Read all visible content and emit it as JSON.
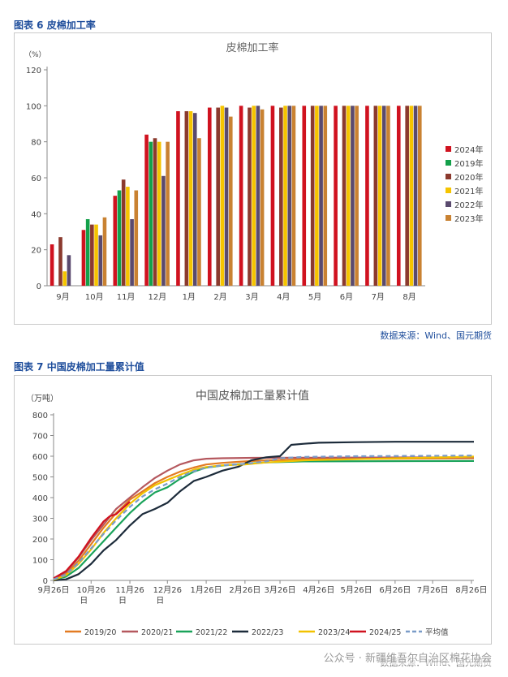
{
  "fig6": {
    "caption": "图表 6 皮棉加工率",
    "source": "数据来源：Wind、国元期货"
  },
  "fig7": {
    "caption": "图表 7 中国皮棉加工量累计值",
    "source": "数据来源：Wind、国元期货"
  },
  "watermark": "公众号 · 新疆维吾尔自治区棉花协会",
  "colors": {
    "2024年": "#d0121f",
    "2019年": "#14a04a",
    "2020年": "#8b3a2e",
    "2021年": "#f5c400",
    "2022年": "#5a4a6e",
    "2023年": "#c98232",
    "2019/20": "#e37b22",
    "2020/21": "#b5585e",
    "2021/22": "#1aa35a",
    "2022/23": "#1c2b3a",
    "2023/24": "#f2c200",
    "2024/25": "#d0121f",
    "平均值": "#7a9cc8"
  },
  "chart_data": [
    {
      "type": "bar",
      "title": "皮棉加工率",
      "ylabel": "（%）",
      "ylim": [
        0,
        120
      ],
      "yticks": [
        0,
        20,
        40,
        60,
        80,
        100,
        120
      ],
      "categories": [
        "9月",
        "10月",
        "11月",
        "12月",
        "1月",
        "2月",
        "3月",
        "4月",
        "5月",
        "6月",
        "7月",
        "8月"
      ],
      "grid": false,
      "legend_position": "right",
      "series": [
        {
          "name": "2024年",
          "values": [
            23,
            31,
            50,
            84,
            97,
            99,
            100,
            100,
            100,
            100,
            100,
            100
          ]
        },
        {
          "name": "2019年",
          "values": [
            null,
            37,
            53,
            80,
            null,
            null,
            null,
            null,
            null,
            null,
            null,
            null
          ]
        },
        {
          "name": "2020年",
          "values": [
            27,
            34,
            59,
            82,
            97,
            99,
            99,
            99,
            100,
            100,
            100,
            100
          ]
        },
        {
          "name": "2021年",
          "values": [
            8,
            34,
            55,
            80,
            97,
            100,
            100,
            100,
            100,
            100,
            100,
            100
          ]
        },
        {
          "name": "2022年",
          "values": [
            17,
            28,
            37,
            61,
            96,
            99,
            100,
            100,
            100,
            100,
            100,
            100
          ]
        },
        {
          "name": "2023年",
          "values": [
            null,
            38,
            53,
            80,
            82,
            94,
            98,
            100,
            100,
            100,
            100,
            100
          ]
        }
      ]
    },
    {
      "type": "line",
      "title": "中国皮棉加工量累计值",
      "ylabel": "（万吨）",
      "ylim": [
        0,
        800
      ],
      "yticks": [
        0,
        100,
        200,
        300,
        400,
        500,
        600,
        700,
        800
      ],
      "xlim": [
        0,
        336
      ],
      "xticks": [
        {
          "x": 0,
          "lines": [
            "9月26日"
          ]
        },
        {
          "x": 30,
          "lines": [
            "10月26",
            "日"
          ]
        },
        {
          "x": 61,
          "lines": [
            "11月26",
            "日"
          ]
        },
        {
          "x": 91,
          "lines": [
            "12月26",
            "日"
          ]
        },
        {
          "x": 122,
          "lines": [
            "1月26日"
          ]
        },
        {
          "x": 153,
          "lines": [
            "2月26日"
          ]
        },
        {
          "x": 181,
          "lines": [
            "3月26日"
          ]
        },
        {
          "x": 212,
          "lines": [
            "4月26日"
          ]
        },
        {
          "x": 242,
          "lines": [
            "5月26日"
          ]
        },
        {
          "x": 273,
          "lines": [
            "6月26日"
          ]
        },
        {
          "x": 303,
          "lines": [
            "7月26日"
          ]
        },
        {
          "x": 334,
          "lines": [
            "8月26日"
          ]
        }
      ],
      "grid": false,
      "legend_position": "bottom",
      "series": [
        {
          "name": "2019/20",
          "dashed": false,
          "points": [
            [
              0,
              5
            ],
            [
              10,
              30
            ],
            [
              20,
              95
            ],
            [
              30,
              175
            ],
            [
              40,
              255
            ],
            [
              50,
              325
            ],
            [
              61,
              390
            ],
            [
              71,
              430
            ],
            [
              81,
              470
            ],
            [
              91,
              500
            ],
            [
              101,
              525
            ],
            [
              112,
              545
            ],
            [
              122,
              560
            ],
            [
              135,
              568
            ],
            [
              153,
              575
            ],
            [
              170,
              580
            ],
            [
              200,
              585
            ],
            [
              336,
              590
            ]
          ]
        },
        {
          "name": "2020/21",
          "dashed": false,
          "points": [
            [
              0,
              8
            ],
            [
              10,
              40
            ],
            [
              20,
              110
            ],
            [
              30,
              195
            ],
            [
              40,
              270
            ],
            [
              50,
              345
            ],
            [
              61,
              400
            ],
            [
              71,
              450
            ],
            [
              81,
              495
            ],
            [
              91,
              530
            ],
            [
              101,
              560
            ],
            [
              112,
              580
            ],
            [
              122,
              588
            ],
            [
              135,
              590
            ],
            [
              160,
              592
            ],
            [
              336,
              595
            ]
          ]
        },
        {
          "name": "2021/22",
          "dashed": false,
          "points": [
            [
              0,
              3
            ],
            [
              10,
              18
            ],
            [
              20,
              60
            ],
            [
              30,
              125
            ],
            [
              40,
              190
            ],
            [
              50,
              255
            ],
            [
              61,
              325
            ],
            [
              71,
              380
            ],
            [
              81,
              425
            ],
            [
              91,
              450
            ],
            [
              101,
              490
            ],
            [
              112,
              525
            ],
            [
              122,
              545
            ],
            [
              135,
              555
            ],
            [
              153,
              563
            ],
            [
              170,
              570
            ],
            [
              200,
              575
            ],
            [
              336,
              577
            ]
          ]
        },
        {
          "name": "2022/23",
          "dashed": false,
          "points": [
            [
              0,
              0
            ],
            [
              10,
              5
            ],
            [
              20,
              30
            ],
            [
              30,
              80
            ],
            [
              40,
              145
            ],
            [
              50,
              195
            ],
            [
              61,
              265
            ],
            [
              71,
              320
            ],
            [
              81,
              345
            ],
            [
              91,
              375
            ],
            [
              101,
              430
            ],
            [
              112,
              480
            ],
            [
              122,
              500
            ],
            [
              135,
              530
            ],
            [
              148,
              550
            ],
            [
              158,
              580
            ],
            [
              170,
              595
            ],
            [
              181,
              600
            ],
            [
              190,
              655
            ],
            [
              200,
              660
            ],
            [
              212,
              665
            ],
            [
              242,
              668
            ],
            [
              273,
              670
            ],
            [
              336,
              670
            ]
          ]
        },
        {
          "name": "2023/24",
          "dashed": false,
          "points": [
            [
              0,
              2
            ],
            [
              10,
              25
            ],
            [
              20,
              80
            ],
            [
              30,
              150
            ],
            [
              40,
              230
            ],
            [
              50,
              300
            ],
            [
              61,
              370
            ],
            [
              71,
              420
            ],
            [
              81,
              460
            ],
            [
              91,
              485
            ],
            [
              101,
              510
            ],
            [
              112,
              535
            ],
            [
              122,
              548
            ],
            [
              135,
              556
            ],
            [
              153,
              560
            ],
            [
              170,
              570
            ],
            [
              200,
              580
            ],
            [
              336,
              598
            ]
          ]
        },
        {
          "name": "2024/25",
          "dashed": false,
          "points": [
            [
              0,
              10
            ],
            [
              10,
              45
            ],
            [
              20,
              115
            ],
            [
              30,
              205
            ],
            [
              40,
              285
            ],
            [
              45,
              310
            ],
            [
              50,
              320
            ],
            [
              61,
              380
            ]
          ]
        },
        {
          "name": "平均值",
          "dashed": true,
          "points": [
            [
              0,
              5
            ],
            [
              10,
              28
            ],
            [
              20,
              85
            ],
            [
              30,
              155
            ],
            [
              40,
              225
            ],
            [
              50,
              290
            ],
            [
              61,
              355
            ],
            [
              71,
              405
            ],
            [
              81,
              440
            ],
            [
              91,
              468
            ],
            [
              101,
              500
            ],
            [
              112,
              528
            ],
            [
              122,
              545
            ],
            [
              135,
              556
            ],
            [
              153,
              563
            ],
            [
              170,
              575
            ],
            [
              181,
              590
            ],
            [
              200,
              597
            ],
            [
              242,
              600
            ],
            [
              336,
              603
            ]
          ]
        }
      ]
    }
  ]
}
